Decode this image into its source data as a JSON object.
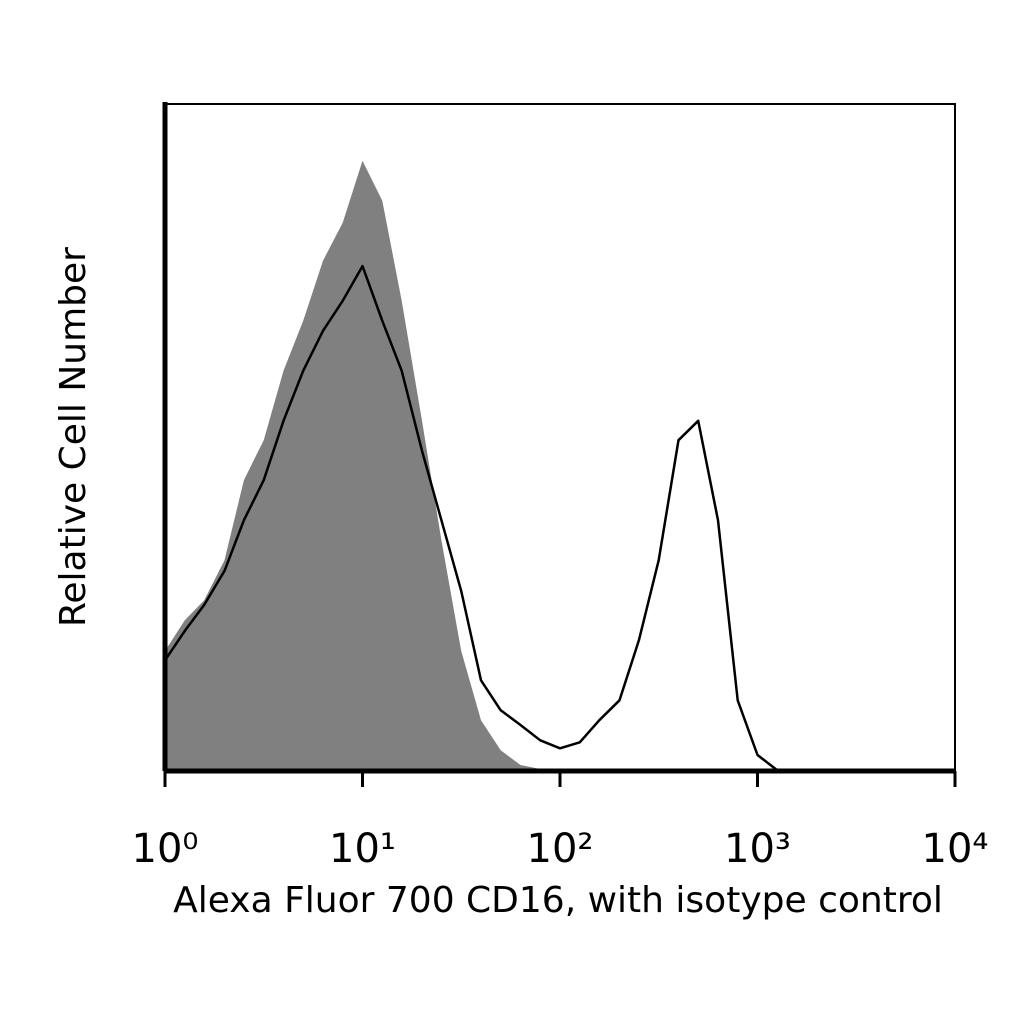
{
  "chart_data": {
    "type": "histogram-overlay",
    "xlabel": "Alexa Fluor 700 CD16, with isotype control",
    "ylabel": "Relative Cell Number",
    "xscale": "log",
    "xlim": [
      1,
      10000
    ],
    "xticks": [
      {
        "value": 1,
        "label": "10⁰"
      },
      {
        "value": 10,
        "label": "10¹"
      },
      {
        "value": 100,
        "label": "10²"
      },
      {
        "value": 1000,
        "label": "10³"
      },
      {
        "value": 10000,
        "label": "10⁴"
      }
    ],
    "ylim": [
      0,
      100
    ],
    "x": [
      1,
      1.26,
      1.58,
      2,
      2.51,
      3.16,
      3.98,
      5.01,
      6.31,
      7.94,
      10,
      12.6,
      15.8,
      20,
      25.1,
      31.6,
      39.8,
      50.1,
      63.1,
      79.4,
      100,
      126,
      158,
      200,
      251,
      316,
      398,
      501,
      631,
      794,
      1000,
      1259,
      1585,
      1995,
      2512,
      3162,
      3981,
      5012,
      6310,
      7943,
      10000
    ],
    "series": [
      {
        "color": "#808080",
        "filled": true,
        "values": [
          18,
          22.6,
          25.6,
          31.6,
          43.6,
          49.6,
          60,
          67.5,
          76.5,
          82.2,
          91.5,
          85.5,
          70.5,
          52.5,
          34.6,
          18,
          7.6,
          3.1,
          0.9,
          0.3,
          0.2,
          0,
          0,
          0,
          0,
          0,
          0,
          0,
          0,
          0,
          0,
          0,
          0,
          0,
          0,
          0,
          0,
          0,
          0,
          0,
          0
        ]
      },
      {
        "color": "#000000",
        "filled": false,
        "values": [
          16.6,
          21,
          24.9,
          30,
          37.6,
          43.6,
          52.5,
          60,
          66,
          70.5,
          75.7,
          67.5,
          60,
          48,
          37.6,
          27,
          13.6,
          9.1,
          6.9,
          4.6,
          3.4,
          4.3,
          7.6,
          10.6,
          19.6,
          31.6,
          49.6,
          52.5,
          37.6,
          10.6,
          2.4,
          0.1,
          0,
          0,
          0,
          0,
          0,
          0,
          0,
          0,
          0
        ]
      }
    ]
  }
}
